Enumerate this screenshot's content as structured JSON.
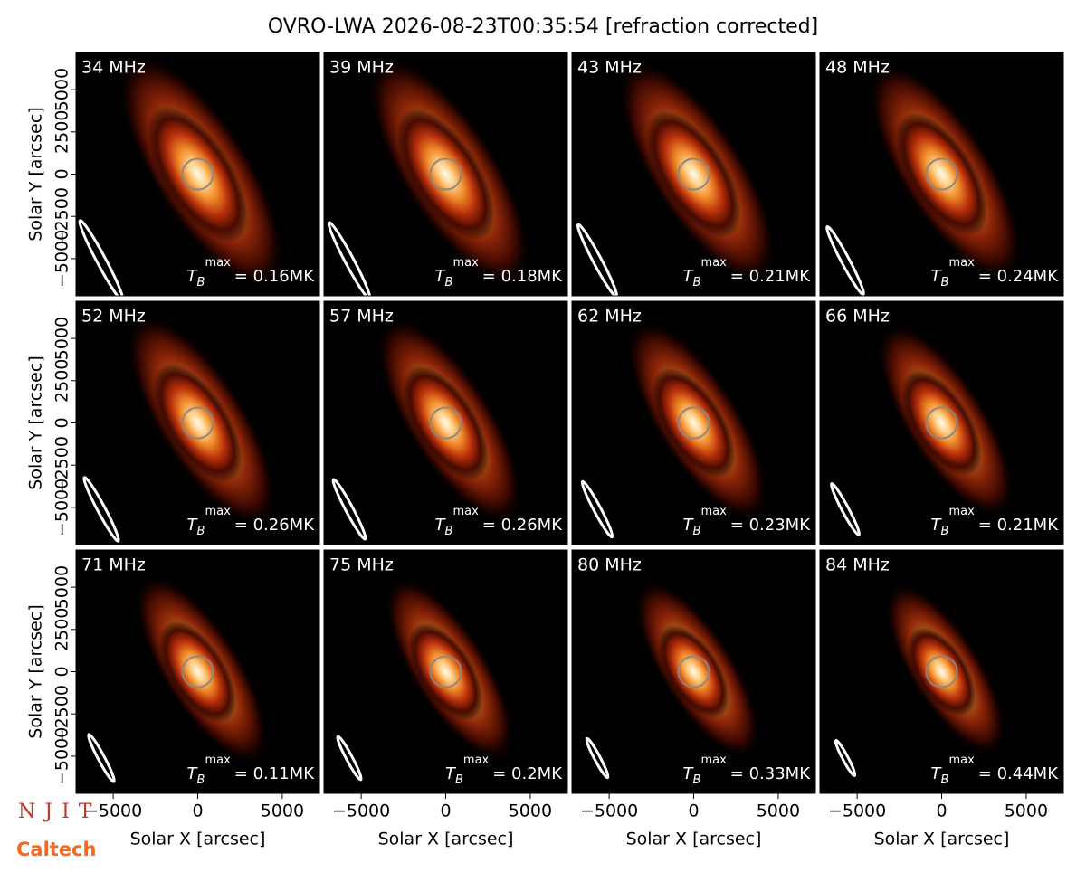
{
  "title": "OVRO-LWA 2026-08-23T00:35:54 [refraction corrected]",
  "axes": {
    "xlabel": "Solar X [arcsec]",
    "ylabel": "Solar Y [arcsec]",
    "xlim": [
      -7200,
      7200
    ],
    "ylim": [
      -7200,
      7200
    ],
    "xticks": [
      {
        "value": -5000,
        "label": "−5000"
      },
      0,
      5000
    ],
    "yticks": [
      {
        "value": -5000,
        "label": "−5000"
      },
      {
        "value": -2500,
        "label": "−2500"
      },
      0,
      2500,
      5000
    ]
  },
  "logos": {
    "top": "NJIT",
    "bottom": "Caltech"
  },
  "chart_data": [
    {
      "type": "image",
      "label": "34 MHz",
      "annotation": {
        "symbol": "T",
        "sub": "B",
        "sup": "max",
        "text": "= 0.16MK"
      }
    },
    {
      "type": "image",
      "label": "39 MHz",
      "annotation": {
        "symbol": "T",
        "sub": "B",
        "sup": "max",
        "text": "= 0.18MK"
      }
    },
    {
      "type": "image",
      "label": "43 MHz",
      "annotation": {
        "symbol": "T",
        "sub": "B",
        "sup": "max",
        "text": "= 0.21MK"
      }
    },
    {
      "type": "image",
      "label": "48 MHz",
      "annotation": {
        "symbol": "T",
        "sub": "B",
        "sup": "max",
        "text": "= 0.24MK"
      }
    },
    {
      "type": "image",
      "label": "52 MHz",
      "annotation": {
        "symbol": "T",
        "sub": "B",
        "sup": "max",
        "text": "= 0.26MK"
      }
    },
    {
      "type": "image",
      "label": "57 MHz",
      "annotation": {
        "symbol": "T",
        "sub": "B",
        "sup": "max",
        "text": "= 0.26MK"
      }
    },
    {
      "type": "image",
      "label": "62 MHz",
      "annotation": {
        "symbol": "T",
        "sub": "B",
        "sup": "max",
        "text": "= 0.23MK"
      }
    },
    {
      "type": "image",
      "label": "66 MHz",
      "annotation": {
        "symbol": "T",
        "sub": "B",
        "sup": "max",
        "text": "= 0.21MK"
      }
    },
    {
      "type": "image",
      "label": "71 MHz",
      "annotation": {
        "symbol": "T",
        "sub": "B",
        "sup": "max",
        "text": "= 0.11MK"
      }
    },
    {
      "type": "image",
      "label": "75 MHz",
      "annotation": {
        "symbol": "T",
        "sub": "B",
        "sup": "max",
        "text": "= 0.2MK"
      }
    },
    {
      "type": "image",
      "label": "80 MHz",
      "annotation": {
        "symbol": "T",
        "sub": "B",
        "sup": "max",
        "text": "= 0.33MK"
      }
    },
    {
      "type": "image",
      "label": "84 MHz",
      "annotation": {
        "symbol": "T",
        "sub": "B",
        "sup": "max",
        "text": "= 0.44MK"
      }
    }
  ]
}
